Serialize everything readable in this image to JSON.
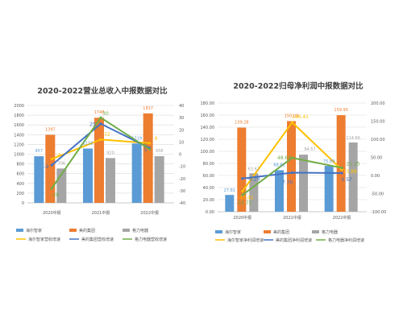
{
  "chart_data": [
    {
      "type": "bar",
      "title": "2020-2022营业总收入中报数据对比",
      "categories": [
        "2020中报",
        "2021中报",
        "2022中报"
      ],
      "left_axis": {
        "ticks": [
          0,
          200,
          400,
          600,
          800,
          1000,
          1200,
          1400,
          1600,
          1800,
          2000
        ],
        "ylim": [
          0,
          2000
        ]
      },
      "right_axis": {
        "ticks": [
          -40,
          -30,
          -20,
          -10,
          0,
          10,
          20,
          30,
          40
        ],
        "ylim": [
          -40,
          40
        ]
      },
      "series": [
        {
          "name": "海尔智家",
          "kind": "bar",
          "axis": "left",
          "color": "#5b9bd5",
          "values": [
            957,
            1116,
            1219
          ],
          "labels": [
            "957",
            "1116",
            "1219"
          ]
        },
        {
          "name": "美的集团",
          "kind": "bar",
          "axis": "left",
          "color": "#ed7d31",
          "values": [
            1397,
            1748,
            1837
          ],
          "labels": [
            "1397",
            "1748",
            "1837"
          ]
        },
        {
          "name": "格力电器",
          "kind": "bar",
          "axis": "left",
          "color": "#a5a5a5",
          "values": [
            706,
            920,
            958
          ],
          "labels": [
            "706",
            "920",
            "958"
          ]
        },
        {
          "name": "海尔智家营收增速",
          "kind": "line",
          "axis": "right",
          "color": "#ffc000",
          "values": [
            -4,
            12,
            9
          ],
          "labels": [
            "-4",
            "12",
            "9"
          ]
        },
        {
          "name": "美的集团营收增速",
          "kind": "line",
          "axis": "right",
          "color": "#4472c4",
          "values": [
            -9,
            25,
            5
          ],
          "labels": [
            "-9",
            "25",
            "5"
          ]
        },
        {
          "name": "格力电器营收增速",
          "kind": "line",
          "axis": "right",
          "color": "#70ad47",
          "values": [
            -28,
            30,
            4
          ],
          "labels": [
            "-28",
            "30",
            "4"
          ]
        }
      ],
      "legend_position": "bottom",
      "grid": true
    },
    {
      "type": "bar",
      "title": "2020-2022归母净利润中报数据对比",
      "categories": [
        "2020中报",
        "2021中报",
        "2022中报"
      ],
      "left_axis": {
        "ticks": [
          "0.00",
          "20.00",
          "40.00",
          "60.00",
          "80.00",
          "100.00",
          "120.00",
          "140.00",
          "160.00",
          "180.00"
        ],
        "ylim": [
          0,
          180
        ]
      },
      "right_axis": {
        "ticks": [
          "-100.00",
          "-50.00",
          "0.00",
          "50.00",
          "100.00",
          "150.00",
          "200.00"
        ],
        "ylim": [
          -100,
          200
        ]
      },
      "series": [
        {
          "name": "海尔智家",
          "kind": "bar",
          "axis": "left",
          "color": "#5b9bd5",
          "values": [
            27.81,
            68.82,
            75.89
          ],
          "labels": [
            "27.81",
            "68.82",
            "75.89"
          ]
        },
        {
          "name": "美的集团",
          "kind": "bar",
          "axis": "left",
          "color": "#ed7d31",
          "values": [
            139.28,
            150.09,
            159.95
          ],
          "labels": [
            "139.28",
            "150.09",
            "159.95"
          ]
        },
        {
          "name": "格力电器",
          "kind": "bar",
          "axis": "left",
          "color": "#a5a5a5",
          "values": [
            63.62,
            94.57,
            114.66
          ],
          "labels": [
            "63.62",
            "94.57",
            "114.66"
          ]
        },
        {
          "name": "海尔智家净利润增速",
          "kind": "line",
          "axis": "right",
          "color": "#ffc000",
          "values": [
            -43.42,
            146.41,
            15.88
          ],
          "labels": [
            "-43.42",
            "146.41",
            "15.88"
          ]
        },
        {
          "name": "美的集团净利润增速",
          "kind": "line",
          "axis": "right",
          "color": "#4472c4",
          "values": [
            -8.29,
            7.76,
            6.57
          ],
          "labels": [
            "-8.29",
            "7.76",
            "6.57"
          ]
        },
        {
          "name": "格力电器净利润增速",
          "kind": "line",
          "axis": "right",
          "color": "#70ad47",
          "values": [
            -53.72,
            48.64,
            21.25
          ],
          "labels": [
            "-53.72",
            "48.64",
            "21.25"
          ]
        }
      ],
      "legend_position": "bottom",
      "grid": true
    }
  ]
}
